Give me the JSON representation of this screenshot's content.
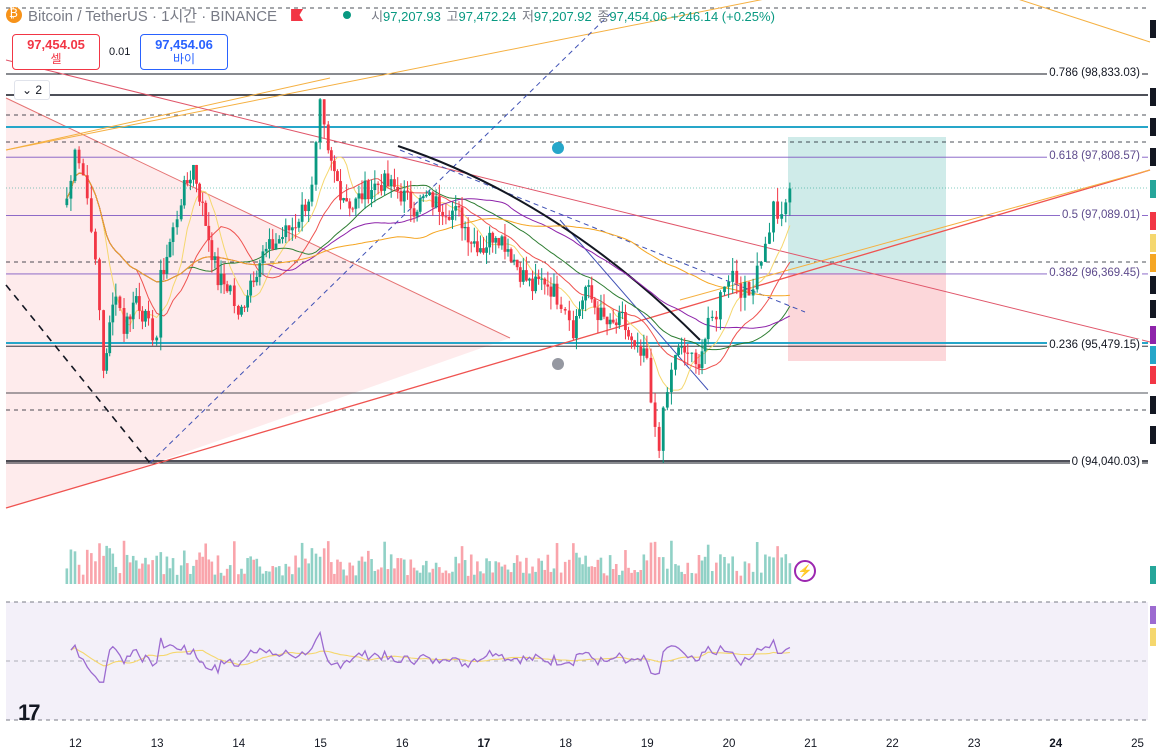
{
  "legend": {
    "symbol": "Bitcoin / TetherUS · 1시간 · BINANCE",
    "open_label": "시",
    "open": "97,207.93",
    "high_label": "고",
    "high": "97,472.24",
    "low_label": "저",
    "low": "97,207.92",
    "close_label": "종",
    "close": "97,454.06",
    "change": "+246.14 (+0.25%)"
  },
  "trade": {
    "sell_price": "97,454.05",
    "sell_label": "셀",
    "qty": "0.01",
    "buy_price": "97,454.06",
    "buy_label": "바이",
    "indicator_count": "2"
  },
  "icons": [
    "bitcoin-icon",
    "flag-icon",
    "status-dot-icon",
    "chevron-down-icon",
    "lightning-icon",
    "tradingview-logo-icon"
  ],
  "colors": {
    "up": "#089981",
    "down": "#f23645",
    "rsi": "#9c6bd0",
    "fib_teal": "#26a69a"
  },
  "chart_data": {
    "type": "candlestick",
    "symbol": "Bitcoin / TetherUS",
    "interval": "1시간",
    "exchange": "BINANCE",
    "ylim": [
      93600,
      99600
    ],
    "x_ticks": [
      "12",
      "13",
      "14",
      "15",
      "16",
      "17",
      "18",
      "19",
      "20",
      "21",
      "22",
      "23",
      "24",
      "25"
    ],
    "fib_levels": [
      {
        "ratio": "0.786",
        "price": 98833.03,
        "label": "0.786 (98,833.03)"
      },
      {
        "ratio": "0.618",
        "price": 97808.57,
        "label": "0.618 (97,808.57)"
      },
      {
        "ratio": "0.5",
        "price": 97089.01,
        "label": "0.5 (97,089.01)"
      },
      {
        "ratio": "0.382",
        "price": 96369.45,
        "label": "0.382 (96,369.45)"
      },
      {
        "ratio": "0.236",
        "price": 95479.15,
        "label": "0.236 (95,479.15)"
      },
      {
        "ratio": "0",
        "price": 94040.03,
        "label": "0 (94,040.03)"
      }
    ],
    "position": {
      "entry": 96369.45,
      "target": 97950,
      "stop": 95400
    },
    "close_path": [
      [
        11.85,
        97100
      ],
      [
        11.95,
        97500
      ],
      [
        12.0,
        98000
      ],
      [
        12.1,
        97600
      ],
      [
        12.2,
        97000
      ],
      [
        12.3,
        95900
      ],
      [
        12.35,
        95200
      ],
      [
        12.5,
        96200
      ],
      [
        12.6,
        95700
      ],
      [
        12.75,
        96100
      ],
      [
        12.9,
        95700
      ],
      [
        13.0,
        95600
      ],
      [
        13.05,
        96300
      ],
      [
        13.2,
        96900
      ],
      [
        13.3,
        97300
      ],
      [
        13.45,
        97700
      ],
      [
        13.6,
        97000
      ],
      [
        13.75,
        96300
      ],
      [
        13.9,
        96200
      ],
      [
        14.0,
        95800
      ],
      [
        14.15,
        96300
      ],
      [
        14.3,
        96600
      ],
      [
        14.5,
        96800
      ],
      [
        14.7,
        97000
      ],
      [
        14.9,
        97400
      ],
      [
        15.0,
        98400
      ],
      [
        15.1,
        97800
      ],
      [
        15.25,
        97400
      ],
      [
        15.4,
        97200
      ],
      [
        15.55,
        97400
      ],
      [
        15.75,
        97500
      ],
      [
        15.95,
        97400
      ],
      [
        16.15,
        97200
      ],
      [
        16.3,
        97300
      ],
      [
        16.5,
        97200
      ],
      [
        16.7,
        97100
      ],
      [
        16.85,
        96800
      ],
      [
        17.0,
        96700
      ],
      [
        17.15,
        96900
      ],
      [
        17.3,
        96700
      ],
      [
        17.45,
        96400
      ],
      [
        17.6,
        96200
      ],
      [
        17.75,
        96300
      ],
      [
        17.9,
        96100
      ],
      [
        18.0,
        96000
      ],
      [
        18.1,
        95700
      ],
      [
        18.25,
        96200
      ],
      [
        18.4,
        95900
      ],
      [
        18.55,
        95700
      ],
      [
        18.7,
        95800
      ],
      [
        18.85,
        95400
      ],
      [
        19.0,
        95300
      ],
      [
        19.05,
        94700
      ],
      [
        19.15,
        94300
      ],
      [
        19.25,
        94900
      ],
      [
        19.35,
        95400
      ],
      [
        19.5,
        95400
      ],
      [
        19.6,
        95200
      ],
      [
        19.75,
        95700
      ],
      [
        19.85,
        95900
      ],
      [
        19.95,
        96300
      ],
      [
        20.05,
        96400
      ],
      [
        20.15,
        96200
      ],
      [
        20.25,
        96100
      ],
      [
        20.35,
        96500
      ],
      [
        20.45,
        96700
      ],
      [
        20.55,
        97200
      ],
      [
        20.65,
        97000
      ],
      [
        20.75,
        97450
      ]
    ],
    "rsi": {
      "ylim": [
        0,
        100
      ],
      "upper": 70,
      "middle": 50,
      "lower": 30
    }
  }
}
